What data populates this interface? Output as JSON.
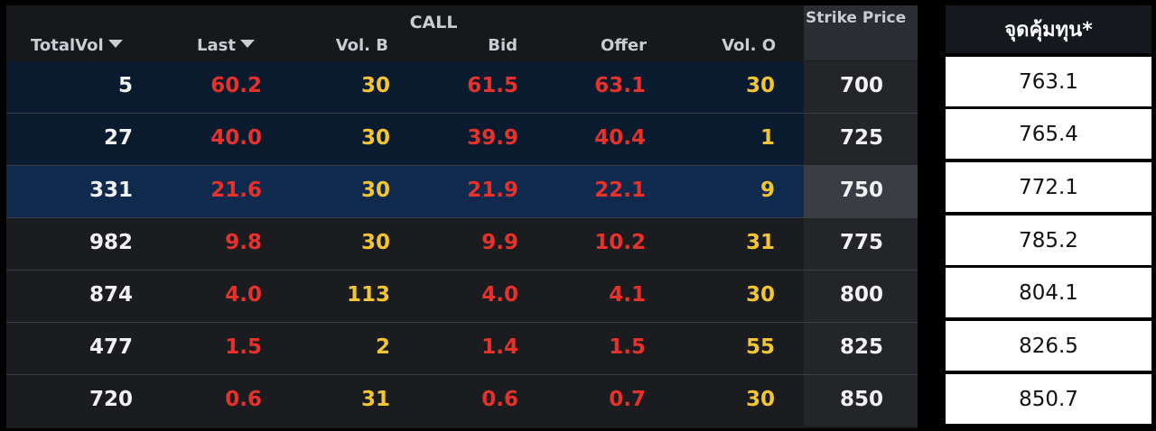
{
  "table": {
    "group_title": "CALL",
    "columns": {
      "totalvol": "TotalVol",
      "last": "Last",
      "volb": "Vol. B",
      "bid": "Bid",
      "offer": "Offer",
      "volo": "Vol. O",
      "strike": "Strike Price"
    },
    "rows": [
      {
        "totalvol": "5",
        "last": "60.2",
        "volb": "30",
        "bid": "61.5",
        "offer": "63.1",
        "volo": "30",
        "strike": "700"
      },
      {
        "totalvol": "27",
        "last": "40.0",
        "volb": "30",
        "bid": "39.9",
        "offer": "40.4",
        "volo": "1",
        "strike": "725"
      },
      {
        "totalvol": "331",
        "last": "21.6",
        "volb": "30",
        "bid": "21.9",
        "offer": "22.1",
        "volo": "9",
        "strike": "750"
      },
      {
        "totalvol": "982",
        "last": "9.8",
        "volb": "30",
        "bid": "9.9",
        "offer": "10.2",
        "volo": "31",
        "strike": "775"
      },
      {
        "totalvol": "874",
        "last": "4.0",
        "volb": "113",
        "bid": "4.0",
        "offer": "4.1",
        "volo": "30",
        "strike": "800"
      },
      {
        "totalvol": "477",
        "last": "1.5",
        "volb": "2",
        "bid": "1.4",
        "offer": "1.5",
        "volo": "55",
        "strike": "825"
      },
      {
        "totalvol": "720",
        "last": "0.6",
        "volb": "31",
        "bid": "0.6",
        "offer": "0.7",
        "volo": "30",
        "strike": "850"
      }
    ]
  },
  "breakeven": {
    "title": "จุดคุ้มทุน*",
    "values": [
      "763.1",
      "765.4",
      "772.1",
      "785.2",
      "804.1",
      "826.5",
      "850.7"
    ]
  },
  "colors": {
    "price_red": "#e8312a",
    "volume_yellow": "#f3c530",
    "text_white": "#f2f2f2",
    "itm_row_bg": "#0a1b30",
    "atm_row_bg": "#0f2a4d"
  },
  "icons": {
    "sort": "caret-down-icon"
  }
}
